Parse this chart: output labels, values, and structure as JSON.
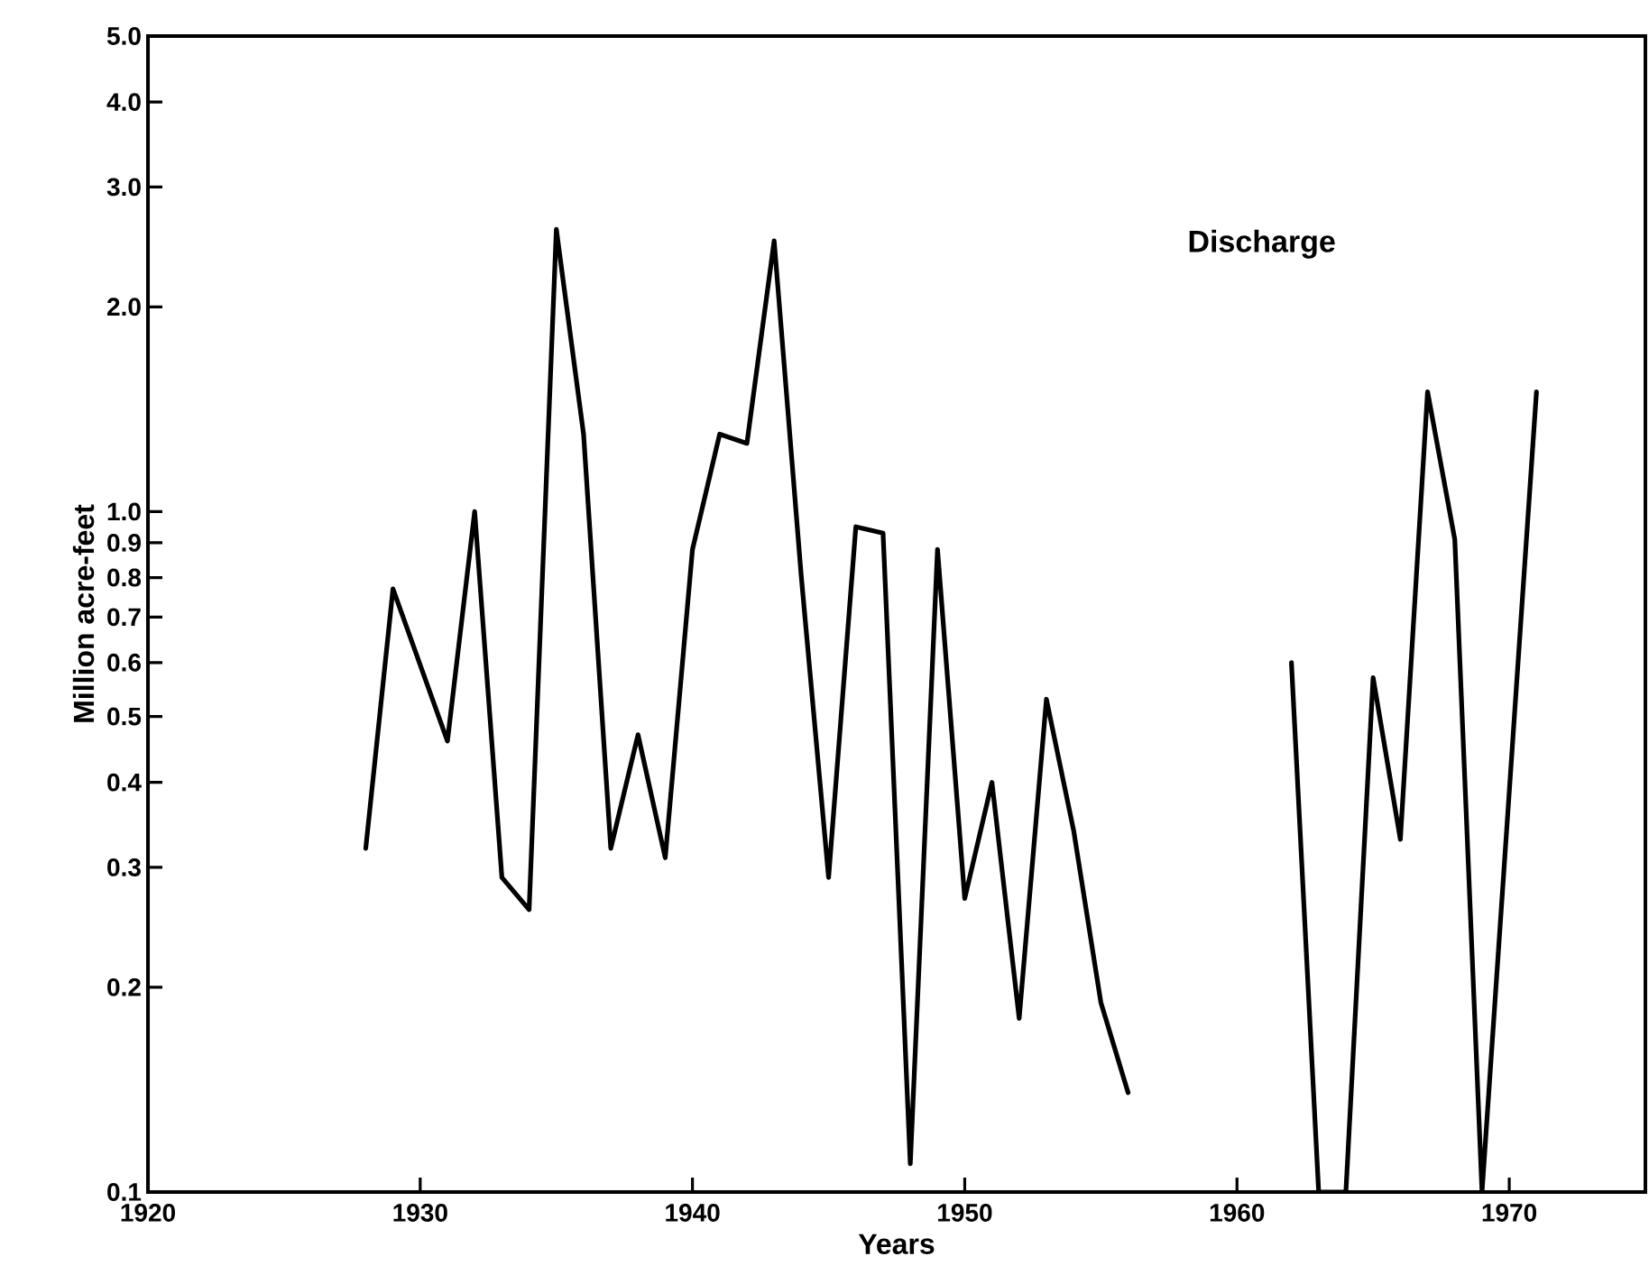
{
  "chart_data": {
    "type": "line",
    "xlabel": "Years",
    "ylabel": "Million acre-feet",
    "annotations": [
      "Discharge"
    ],
    "x": [
      1928,
      1929,
      1931,
      1932,
      1933,
      1934,
      1935,
      1936,
      1937,
      1938,
      1939,
      1940,
      1941,
      1942,
      1943,
      1944,
      1945,
      1946,
      1947,
      1948,
      1949,
      1950,
      1951,
      1952,
      1953,
      1954,
      1955,
      1956,
      1957,
      1958,
      1959,
      1960,
      1961,
      1962,
      1963,
      1964,
      1965,
      1966,
      1967,
      1968,
      1969,
      1971
    ],
    "series": [
      {
        "color": "#000000",
        "values": [
          0.32,
          0.77,
          0.46,
          1.0,
          0.29,
          0.26,
          2.6,
          1.3,
          0.32,
          0.47,
          0.31,
          0.88,
          1.3,
          1.26,
          2.5,
          0.8,
          0.29,
          0.95,
          0.93,
          0.11,
          0.88,
          0.27,
          0.4,
          0.18,
          0.53,
          0.34,
          0.19,
          0.14,
          null,
          null,
          null,
          null,
          null,
          0.6,
          0.1,
          0.1,
          0.57,
          0.33,
          1.5,
          0.91,
          0.1,
          1.5
        ]
      }
    ],
    "log": "y",
    "xlim": [
      1920,
      1975
    ],
    "xticks": [
      1920,
      1930,
      1940,
      1950,
      1960,
      1970
    ],
    "ylim": [
      0.1,
      5.0
    ],
    "yticks": [
      0.1,
      0.2,
      0.3,
      0.4,
      0.5,
      0.6,
      0.7,
      0.8,
      0.9,
      {
        "value": 1,
        "label": "1.0"
      },
      {
        "value": 2,
        "label": "2.0"
      },
      {
        "value": 3,
        "label": "3.0"
      },
      {
        "value": 4,
        "label": "4.0"
      },
      {
        "value": 5,
        "label": "5.0"
      }
    ]
  }
}
